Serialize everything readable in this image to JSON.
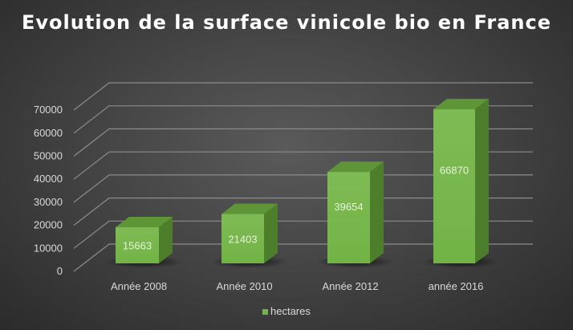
{
  "chart_data": {
    "type": "bar",
    "title": "Evolution de la surface vinicole bio en France",
    "categories": [
      "Année 2008",
      "Année 2010",
      "Année 2012",
      "année 2016"
    ],
    "series": [
      {
        "name": "hectares",
        "values": [
          15663,
          21403,
          39654,
          66870
        ]
      }
    ],
    "data_labels": [
      "15663",
      "21403",
      "39654",
      "66870"
    ],
    "ylim": [
      0,
      70000
    ],
    "yticks": [
      "0",
      "10000",
      "20000",
      "30000",
      "40000",
      "50000",
      "60000",
      "70000"
    ],
    "grid": true,
    "legend": "bottom",
    "style": "3d-column",
    "colors": {
      "bar": "#72b345",
      "bar_side": "#4d7e2c",
      "bar_top": "#5e9637",
      "text": "#d9d9d9",
      "grid": "#8c8c8c"
    }
  }
}
